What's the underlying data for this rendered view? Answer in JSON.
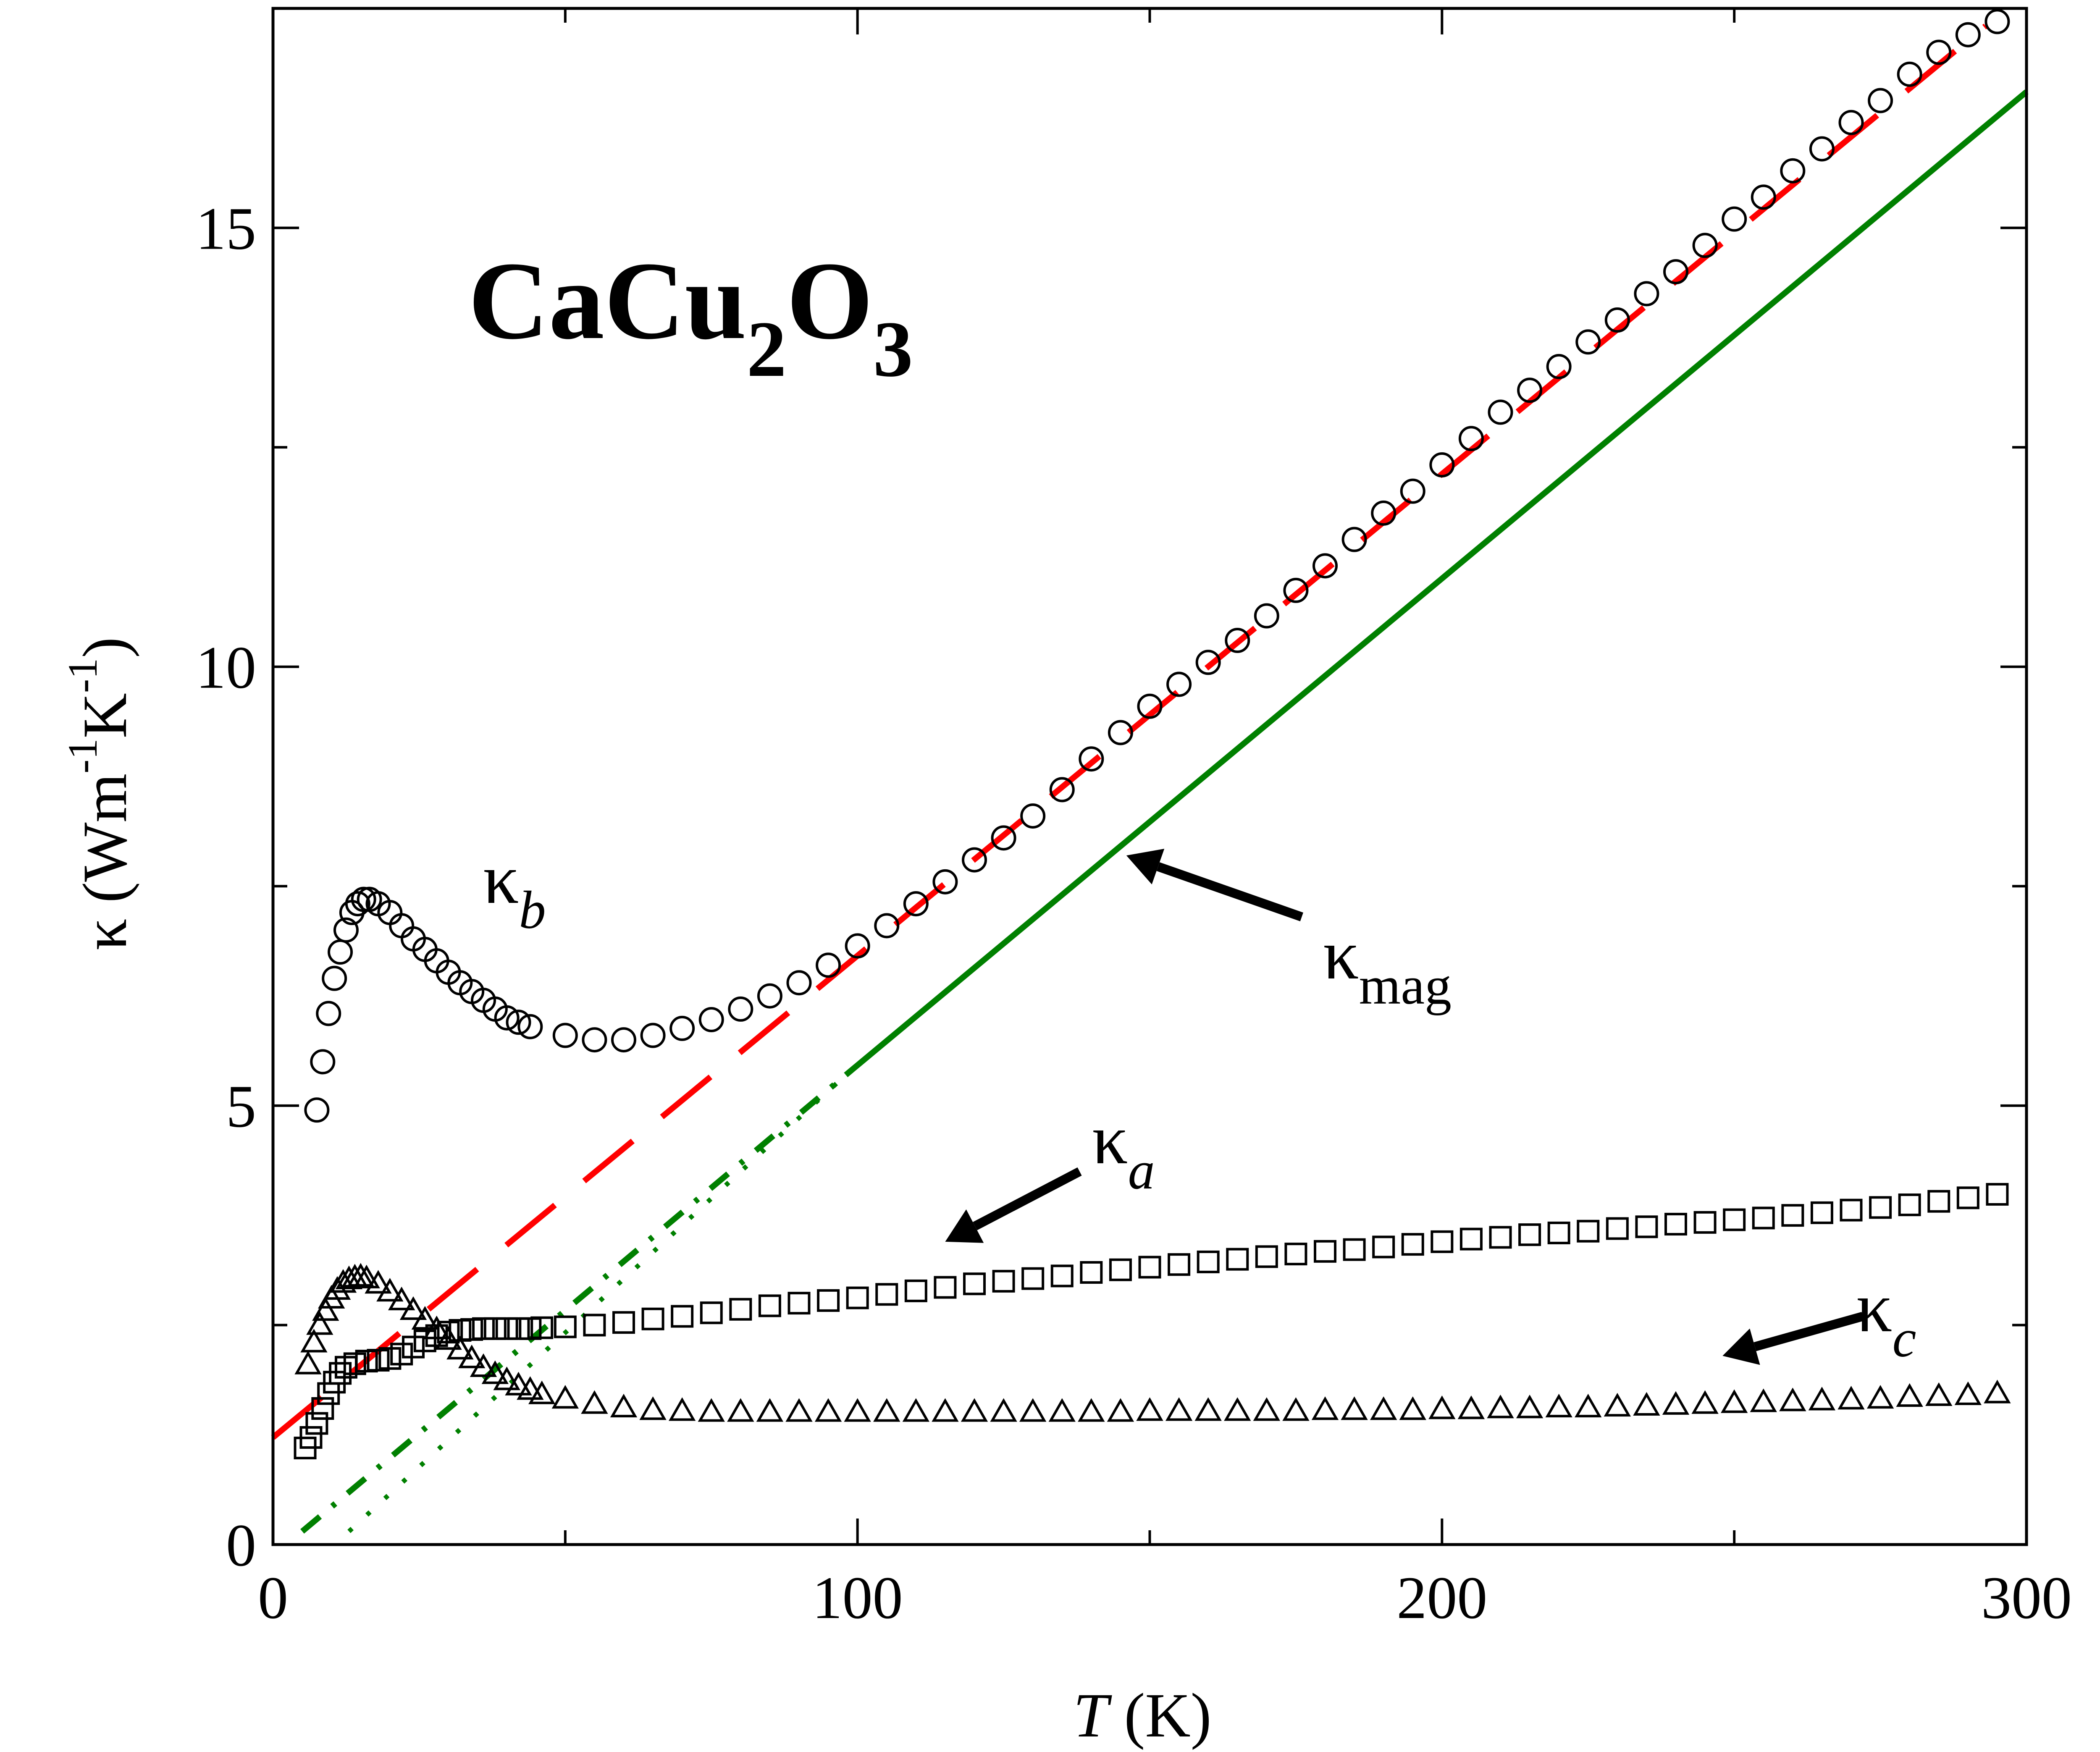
{
  "chart_data": {
    "type": "scatter",
    "title": "CaCu2O3",
    "title_parts": {
      "base1": "CaCu",
      "sub1": "2",
      "base2": "O",
      "sub2": "3"
    },
    "xlabel": {
      "italic": "T",
      "rest": " (K)"
    },
    "ylabel": {
      "base": "κ (Wm",
      "sup1": "-1",
      "mid": "K",
      "sup2": "-1",
      "end": ")"
    },
    "xlim": [
      0,
      300
    ],
    "ylim": [
      0,
      17.5
    ],
    "x_major_ticks": [
      0,
      100,
      200,
      300
    ],
    "x_minor_ticks": [
      50,
      150,
      250
    ],
    "y_major_ticks": [
      0,
      5,
      10,
      15
    ],
    "y_minor_ticks": [
      2.5,
      7.5,
      12.5
    ],
    "x_tick_labels": [
      "0",
      "100",
      "200",
      "300"
    ],
    "y_tick_labels": [
      "0",
      "5",
      "10",
      "15"
    ],
    "grid": false,
    "colors": {
      "red": "#ff0000",
      "green": "#008000",
      "marker": "#000000"
    },
    "labels": {
      "kb": {
        "base": "κ",
        "sub": "b"
      },
      "ka": {
        "base": "κ",
        "sub": "a"
      },
      "kc": {
        "base": "κ",
        "sub": "c"
      },
      "kmag": {
        "base": "κ",
        "sub": "mag"
      }
    },
    "series": [
      {
        "name": "κ_b",
        "marker": "circle",
        "x": [
          7.5,
          8.5,
          9.5,
          10.5,
          11.5,
          12.5,
          13.5,
          14.5,
          15.5,
          16.5,
          18,
          20,
          22,
          24,
          26,
          28,
          30,
          32,
          34,
          36,
          38,
          40,
          42,
          44,
          50,
          55,
          60,
          65,
          70,
          75,
          80,
          85,
          90,
          95,
          100,
          105,
          110,
          115,
          120,
          125,
          130,
          135,
          140,
          145,
          150,
          155,
          160,
          165,
          170,
          175,
          180,
          185,
          190,
          195,
          200,
          205,
          210,
          215,
          220,
          225,
          230,
          235,
          240,
          245,
          250,
          255,
          260,
          265,
          270,
          275,
          280,
          285,
          290,
          295
        ],
        "y": [
          4.95,
          5.5,
          6.05,
          6.45,
          6.75,
          7.0,
          7.2,
          7.3,
          7.35,
          7.35,
          7.3,
          7.2,
          7.05,
          6.9,
          6.78,
          6.65,
          6.52,
          6.4,
          6.3,
          6.2,
          6.1,
          6.0,
          5.95,
          5.9,
          5.8,
          5.75,
          5.75,
          5.8,
          5.88,
          5.98,
          6.1,
          6.25,
          6.4,
          6.6,
          6.82,
          7.05,
          7.3,
          7.55,
          7.8,
          8.05,
          8.3,
          8.6,
          8.95,
          9.25,
          9.55,
          9.8,
          10.05,
          10.3,
          10.58,
          10.87,
          11.15,
          11.45,
          11.75,
          12.0,
          12.3,
          12.6,
          12.9,
          13.15,
          13.42,
          13.7,
          13.95,
          14.25,
          14.5,
          14.8,
          15.1,
          15.35,
          15.65,
          15.9,
          16.2,
          16.45,
          16.75,
          17.0,
          17.2,
          17.35
        ]
      },
      {
        "name": "κ_a",
        "marker": "square",
        "x": [
          5.5,
          6.5,
          7.5,
          8.5,
          9.5,
          10.5,
          11.5,
          12.5,
          14,
          16,
          18,
          20,
          22,
          24,
          26,
          28,
          30,
          32,
          34,
          36,
          38,
          40,
          42,
          44,
          46,
          50,
          55,
          60,
          65,
          70,
          75,
          80,
          85,
          90,
          95,
          100,
          105,
          110,
          115,
          120,
          125,
          130,
          135,
          140,
          145,
          150,
          155,
          160,
          165,
          170,
          175,
          180,
          185,
          190,
          195,
          200,
          205,
          210,
          215,
          220,
          225,
          230,
          235,
          240,
          245,
          250,
          255,
          260,
          265,
          270,
          275,
          280,
          285,
          290,
          295
        ],
        "y": [
          1.1,
          1.22,
          1.38,
          1.55,
          1.72,
          1.85,
          1.95,
          2.02,
          2.06,
          2.09,
          2.1,
          2.12,
          2.17,
          2.25,
          2.32,
          2.38,
          2.42,
          2.44,
          2.45,
          2.46,
          2.46,
          2.46,
          2.46,
          2.46,
          2.47,
          2.48,
          2.5,
          2.53,
          2.57,
          2.6,
          2.64,
          2.68,
          2.72,
          2.75,
          2.78,
          2.81,
          2.85,
          2.89,
          2.93,
          2.97,
          3.0,
          3.03,
          3.06,
          3.1,
          3.13,
          3.16,
          3.19,
          3.22,
          3.25,
          3.28,
          3.31,
          3.34,
          3.36,
          3.39,
          3.42,
          3.45,
          3.48,
          3.5,
          3.53,
          3.55,
          3.57,
          3.6,
          3.62,
          3.65,
          3.67,
          3.7,
          3.72,
          3.75,
          3.78,
          3.81,
          3.84,
          3.87,
          3.91,
          3.95,
          3.99
        ]
      },
      {
        "name": "κ_c",
        "marker": "triangle",
        "x": [
          6,
          7,
          8,
          9,
          10,
          11,
          12,
          13,
          14,
          15,
          16,
          18,
          20,
          22,
          24,
          26,
          28,
          30,
          32,
          34,
          36,
          38,
          40,
          42,
          44,
          46,
          50,
          55,
          60,
          65,
          70,
          75,
          80,
          85,
          90,
          95,
          100,
          105,
          110,
          115,
          120,
          125,
          130,
          135,
          140,
          145,
          150,
          155,
          160,
          165,
          170,
          175,
          180,
          185,
          190,
          195,
          200,
          205,
          210,
          215,
          220,
          225,
          230,
          235,
          240,
          245,
          250,
          255,
          260,
          265,
          270,
          275,
          280,
          285,
          290,
          295
        ],
        "y": [
          2.05,
          2.3,
          2.5,
          2.66,
          2.8,
          2.9,
          2.98,
          3.02,
          3.04,
          3.05,
          3.03,
          2.97,
          2.88,
          2.78,
          2.67,
          2.56,
          2.45,
          2.33,
          2.22,
          2.12,
          2.02,
          1.94,
          1.87,
          1.81,
          1.76,
          1.71,
          1.66,
          1.6,
          1.56,
          1.53,
          1.52,
          1.51,
          1.51,
          1.51,
          1.51,
          1.51,
          1.51,
          1.51,
          1.51,
          1.51,
          1.51,
          1.51,
          1.51,
          1.51,
          1.51,
          1.51,
          1.52,
          1.52,
          1.52,
          1.52,
          1.52,
          1.52,
          1.53,
          1.53,
          1.53,
          1.53,
          1.54,
          1.54,
          1.55,
          1.55,
          1.56,
          1.56,
          1.57,
          1.58,
          1.59,
          1.6,
          1.61,
          1.62,
          1.63,
          1.64,
          1.65,
          1.66,
          1.68,
          1.69,
          1.7,
          1.72
        ]
      }
    ],
    "fit_lines": [
      {
        "name": "red-dashed-fit",
        "style": "dashed",
        "color": "#ff0000",
        "x": [
          0,
          293
        ],
        "y": [
          1.22,
          17.3
        ]
      },
      {
        "name": "green-solid-kmag",
        "style": "solid",
        "color": "#008000",
        "x": [
          98,
          300
        ],
        "y": [
          5.35,
          16.55
        ]
      },
      {
        "name": "green-dash-dot",
        "style": "dashdot",
        "color": "#008000",
        "x": [
          5,
          98
        ],
        "y": [
          0.15,
          5.35
        ]
      },
      {
        "name": "green-dotted",
        "style": "dotted",
        "color": "#008000",
        "x": [
          13,
          98
        ],
        "y": [
          0.15,
          5.35
        ]
      }
    ],
    "arrows": [
      {
        "name": "kmag-arrow",
        "from": [
          176,
          7.15
        ],
        "to": [
          146,
          7.85
        ]
      },
      {
        "name": "ka-arrow",
        "from": [
          138,
          4.25
        ],
        "to": [
          115,
          3.45
        ]
      },
      {
        "name": "kc-arrow",
        "from": [
          272,
          2.6
        ],
        "to": [
          248,
          2.15
        ]
      }
    ]
  }
}
